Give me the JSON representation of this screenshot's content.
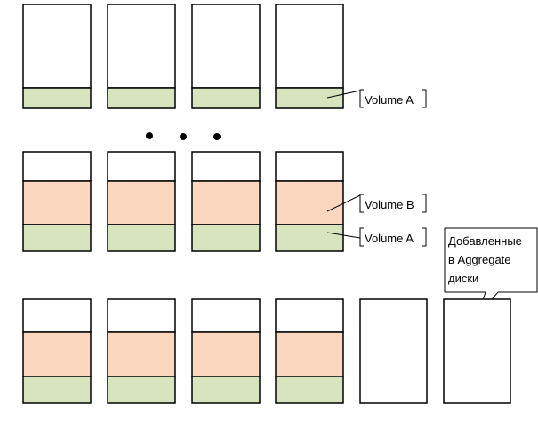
{
  "colors": {
    "free": "#ffffff",
    "volume_a": "#d7e4bd",
    "volume_b": "#fad7be",
    "stroke": "#000000"
  },
  "ellipsis_glyph": "•",
  "rows": [
    {
      "id": "row-1",
      "disks": [
        [
          "volume_a"
        ],
        [
          "volume_a"
        ],
        [
          "volume_a"
        ],
        [
          "volume_a"
        ]
      ]
    },
    {
      "id": "row-2",
      "disks": [
        [
          "volume_a",
          "volume_b"
        ],
        [
          "volume_a",
          "volume_b"
        ],
        [
          "volume_a",
          "volume_b"
        ],
        [
          "volume_a",
          "volume_b"
        ]
      ]
    },
    {
      "id": "row-3",
      "disks": [
        [
          "volume_a",
          "volume_b"
        ],
        [
          "volume_a",
          "volume_b"
        ],
        [
          "volume_a",
          "volume_b"
        ],
        [
          "volume_a",
          "volume_b"
        ],
        [],
        []
      ]
    }
  ],
  "labels": {
    "row1_volume_a": "Volume A",
    "row2_volume_b": "Volume B",
    "row2_volume_a": "Volume A"
  },
  "callout": {
    "lines": [
      "Добавленные",
      "в Aggregate",
      "диски"
    ]
  }
}
